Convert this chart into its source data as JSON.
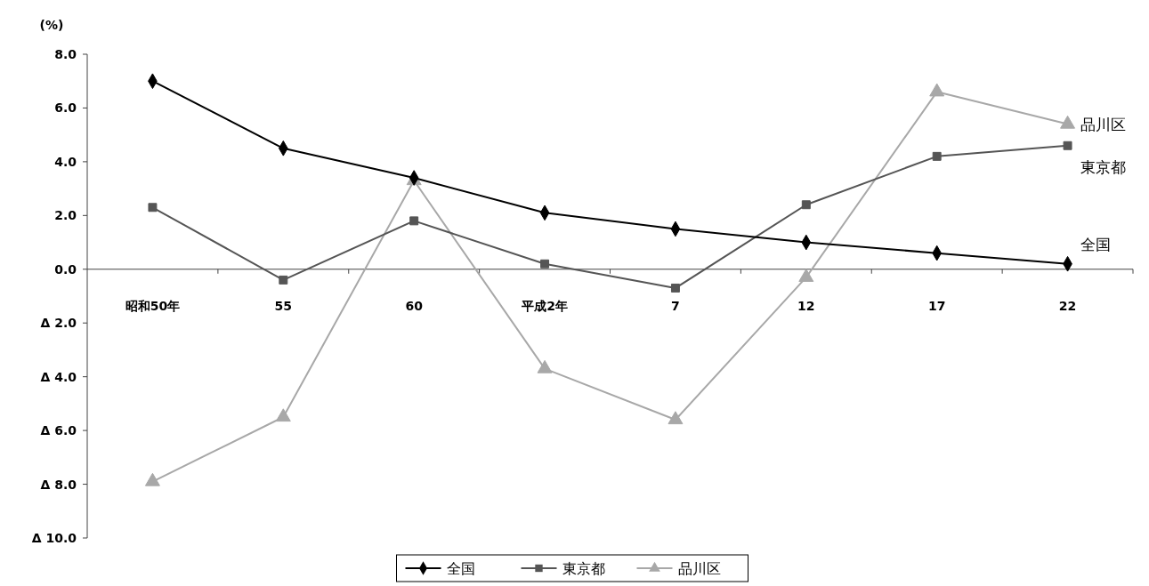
{
  "chart_data": {
    "type": "line",
    "ylabel": "(%)",
    "categories": [
      "昭和50年",
      "55",
      "60",
      "平成2年",
      "7",
      "12",
      "17",
      "22"
    ],
    "series": [
      {
        "name": "全国",
        "color": "#000000",
        "marker": "diamond",
        "values": [
          7.0,
          4.5,
          3.4,
          2.1,
          1.5,
          1.0,
          0.6,
          0.2
        ]
      },
      {
        "name": "東京都",
        "color": "#555555",
        "marker": "square",
        "values": [
          2.3,
          -0.4,
          1.8,
          0.2,
          -0.7,
          2.4,
          4.2,
          4.6
        ]
      },
      {
        "name": "品川区",
        "color": "#a8a8a8",
        "marker": "triangle",
        "values": [
          -7.9,
          -5.5,
          3.3,
          -3.7,
          -5.6,
          -0.3,
          6.6,
          5.4
        ]
      }
    ],
    "ylim": [
      -10,
      8
    ],
    "yticks": [
      {
        "value": -10,
        "label": "Δ 10.0"
      },
      {
        "value": -8,
        "label": "Δ 8.0"
      },
      {
        "value": -6,
        "label": "Δ 6.0"
      },
      {
        "value": -4,
        "label": "Δ 4.0"
      },
      {
        "value": -2,
        "label": "Δ 2.0"
      },
      {
        "value": 0,
        "label": "0.0"
      },
      {
        "value": 2,
        "label": "2.0"
      },
      {
        "value": 4,
        "label": "4.0"
      },
      {
        "value": 6,
        "label": "6.0"
      },
      {
        "value": 8,
        "label": "8.0"
      }
    ],
    "grid": false,
    "legend": "bottom"
  }
}
